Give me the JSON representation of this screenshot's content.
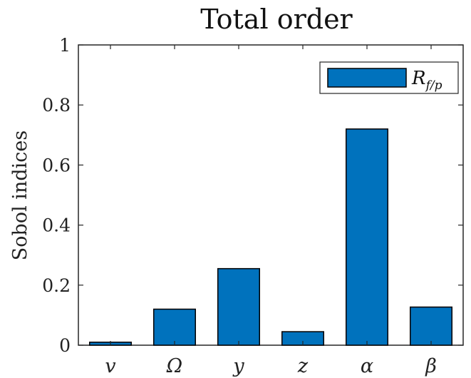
{
  "chart_data": {
    "type": "bar",
    "title": "Total order",
    "ylabel": "Sobol indices",
    "xlabel": "",
    "categories": [
      "v",
      "Ω",
      "y",
      "z",
      "α",
      "β"
    ],
    "series": [
      {
        "name": "R_f/p",
        "values": [
          0.01,
          0.12,
          0.255,
          0.045,
          0.72,
          0.127
        ]
      }
    ],
    "ylim": [
      0,
      1
    ],
    "yticks": [
      "0",
      "0.2",
      "0.4",
      "0.6",
      "0.8",
      "1"
    ],
    "grid": false,
    "legend": "top-right",
    "bar_color": "#0072BD"
  },
  "legend_label": {
    "main": "R",
    "sub": "f/p"
  }
}
